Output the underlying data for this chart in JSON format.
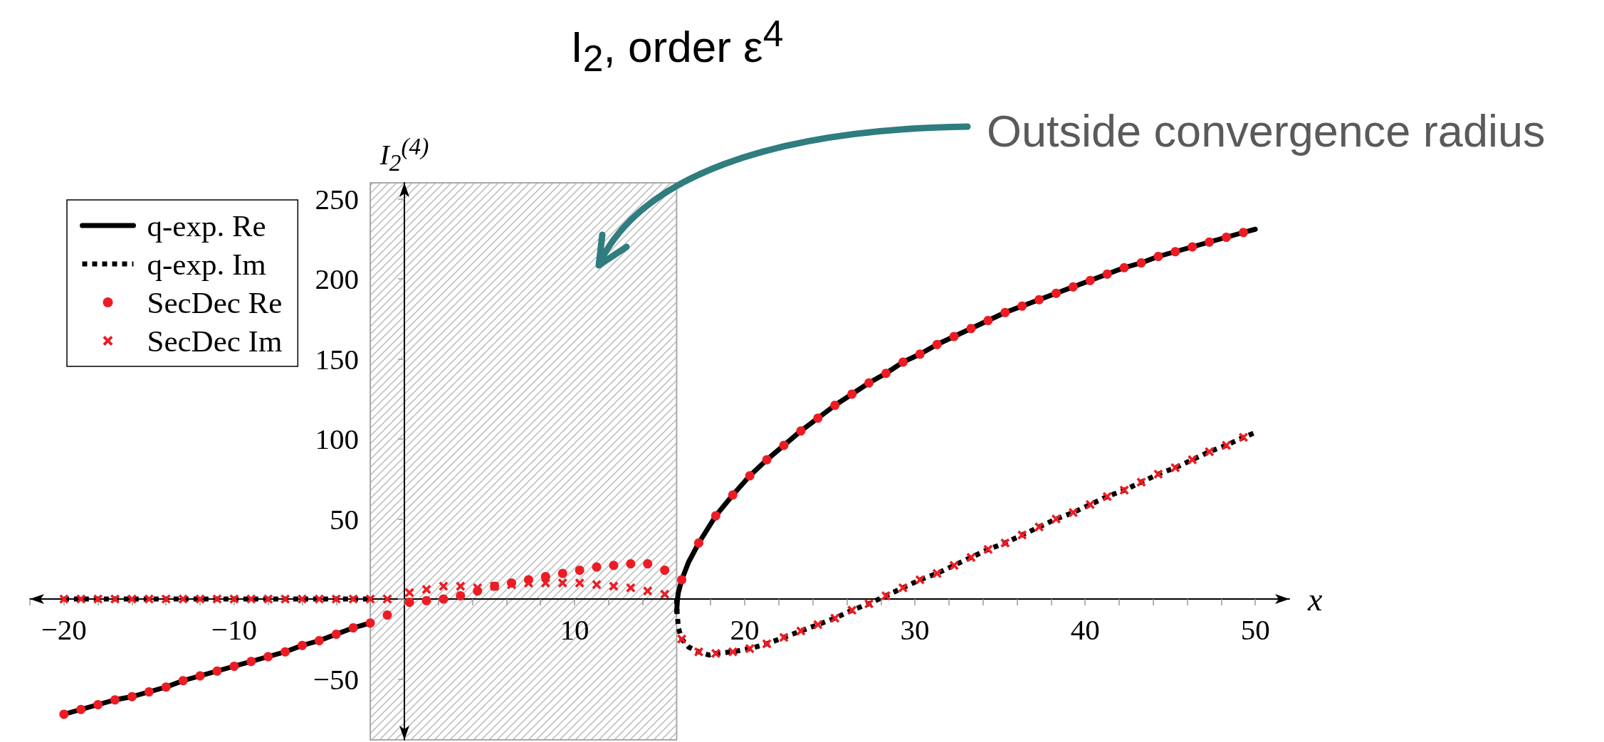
{
  "chart_data": {
    "type": "line",
    "title": "I$_{2}$, order ε$^{4}$",
    "xlabel": "x",
    "ylabel": "I$_{2}$$^{(4)}$",
    "xlim": [
      -22,
      52
    ],
    "ylim": [
      -88,
      260
    ],
    "xticks": [
      {
        "value": -22,
        "label": null
      },
      {
        "value": -20,
        "label": "−20"
      },
      {
        "value": -18,
        "label": null
      },
      {
        "value": -16,
        "label": null
      },
      {
        "value": -14,
        "label": null
      },
      {
        "value": -12,
        "label": null
      },
      {
        "value": -10,
        "label": "−10"
      },
      {
        "value": -8,
        "label": null
      },
      {
        "value": -6,
        "label": null
      },
      {
        "value": -4,
        "label": null
      },
      {
        "value": -2,
        "label": null
      },
      {
        "value": 0,
        "label": null
      },
      {
        "value": 2,
        "label": null
      },
      {
        "value": 4,
        "label": null
      },
      {
        "value": 6,
        "label": null
      },
      {
        "value": 8,
        "label": null
      },
      10,
      {
        "value": 12,
        "label": null
      },
      {
        "value": 14,
        "label": null
      },
      {
        "value": 16,
        "label": null
      },
      {
        "value": 18,
        "label": null
      },
      20,
      {
        "value": 22,
        "label": null
      },
      {
        "value": 24,
        "label": null
      },
      {
        "value": 26,
        "label": null
      },
      {
        "value": 28,
        "label": null
      },
      30,
      {
        "value": 32,
        "label": null
      },
      {
        "value": 34,
        "label": null
      },
      {
        "value": 36,
        "label": null
      },
      {
        "value": 38,
        "label": null
      },
      40,
      {
        "value": 42,
        "label": null
      },
      {
        "value": 44,
        "label": null
      },
      {
        "value": 46,
        "label": null
      },
      {
        "value": 48,
        "label": null
      },
      50
    ],
    "yticks": [
      {
        "value": -50,
        "label": "−50"
      },
      {
        "value": 0,
        "label": null
      },
      50,
      100,
      150,
      200,
      250
    ],
    "legend": "top left",
    "bands": [
      {
        "axis": "x",
        "from": -2,
        "to": 16,
        "label": "Outside convergence radius",
        "color": "#a8a8a8"
      }
    ],
    "series": [
      {
        "name": "q-exp. Re",
        "type": "line",
        "color": "#000000",
        "line_style": "solid",
        "marker": "none",
        "x": [
          -20,
          -19,
          -18,
          -17,
          -16,
          -15,
          -14,
          -13,
          -12,
          -11,
          -10,
          -9,
          -8,
          -7,
          -6,
          -5,
          -4,
          -3,
          -2,
          -1,
          16,
          16.05,
          16.1,
          16.3,
          16.7,
          17.3,
          18.3,
          19.3,
          20.3,
          21.3,
          22.3,
          23.3,
          24.3,
          25.3,
          26.3,
          27.3,
          28.3,
          29.3,
          30.3,
          31.3,
          32.3,
          33.3,
          34.3,
          35.3,
          36.3,
          37.3,
          38.3,
          39.3,
          40.3,
          41.3,
          42.3,
          43.3,
          44.3,
          45.3,
          46.3,
          47.3,
          48.3,
          49.3,
          50
        ],
        "values": [
          -72,
          -69,
          -66,
          -63,
          -61,
          -58,
          -55,
          -51,
          -48,
          -45,
          -42,
          -39,
          -36,
          -33,
          -29,
          -26,
          -22,
          -18,
          -15,
          null,
          -8,
          0,
          4,
          12,
          23,
          35,
          52,
          65,
          77,
          87,
          96,
          105,
          113,
          121,
          128,
          135,
          141,
          148,
          153,
          159,
          164,
          169,
          174,
          179,
          183,
          187,
          191,
          195,
          199,
          203,
          207,
          210,
          214,
          217,
          220,
          223,
          226,
          229,
          231
        ]
      },
      {
        "name": "q-exp. Im",
        "type": "line",
        "color": "#000000",
        "line_style": "dotted",
        "marker": "none",
        "x": [
          -20,
          -2,
          -1,
          16,
          16.03,
          16.1,
          16.3,
          16.7,
          17.3,
          17.9,
          18.3,
          19.3,
          20.3,
          21.3,
          22.3,
          23.3,
          24.3,
          25.3,
          26.3,
          27.3,
          28.3,
          29.3,
          30.3,
          31.3,
          32.3,
          33.3,
          34.3,
          35.3,
          36.3,
          37.3,
          38.3,
          39.3,
          40.3,
          41.3,
          42.3,
          43.3,
          44.3,
          45.3,
          46.3,
          47.3,
          48.3,
          49.3,
          50
        ],
        "values": [
          0,
          0,
          null,
          0,
          -8,
          -18,
          -25,
          -30,
          -33,
          -35,
          -34,
          -33,
          -31,
          -28,
          -24,
          -20,
          -16,
          -12,
          -7,
          -3,
          2,
          7,
          12,
          16,
          21,
          26,
          31,
          35,
          40,
          45,
          50,
          54,
          59,
          64,
          68,
          73,
          78,
          82,
          87,
          92,
          96,
          101,
          104
        ]
      },
      {
        "name": "SecDec Re",
        "type": "scatter",
        "color": "#ed1c24",
        "marker": "circle",
        "x": [
          -20,
          -19,
          -18,
          -17,
          -16,
          -15,
          -14,
          -13,
          -12,
          -11,
          -10,
          -9,
          -8,
          -7,
          -6,
          -5,
          -4,
          -3,
          -2,
          -1,
          0.3,
          1.3,
          2.3,
          3.3,
          4.3,
          5.3,
          6.3,
          7.3,
          8.3,
          9.3,
          10.3,
          11.3,
          12.3,
          13.3,
          14.3,
          15.3,
          16.3,
          17.3,
          18.3,
          19.3,
          20.3,
          21.3,
          22.3,
          23.3,
          24.3,
          25.3,
          26.3,
          27.3,
          28.3,
          29.3,
          30.3,
          31.3,
          32.3,
          33.3,
          34.3,
          35.3,
          36.3,
          37.3,
          38.3,
          39.3,
          40.3,
          41.3,
          42.3,
          43.3,
          44.3,
          45.3,
          46.3,
          47.3,
          48.3,
          49.3
        ],
        "values": [
          -72,
          -69,
          -66,
          -63,
          -61,
          -58,
          -55,
          -51,
          -48,
          -45,
          -42,
          -39,
          -36,
          -33,
          -29,
          -26,
          -22,
          -18,
          -15,
          -10,
          -2,
          -1,
          0,
          2,
          5,
          8,
          10,
          12,
          14,
          16,
          18,
          20,
          21,
          22,
          22,
          18,
          12,
          35,
          52,
          65,
          77,
          87,
          96,
          105,
          113,
          121,
          128,
          135,
          141,
          148,
          153,
          159,
          164,
          169,
          174,
          179,
          183,
          187,
          191,
          195,
          199,
          203,
          207,
          210,
          214,
          217,
          220,
          223,
          226,
          229
        ]
      },
      {
        "name": "SecDec Im",
        "type": "scatter",
        "color": "#ed1c24",
        "marker": "cross",
        "x": [
          -20,
          -19,
          -18,
          -17,
          -16,
          -15,
          -14,
          -13,
          -12,
          -11,
          -10,
          -9,
          -8,
          -7,
          -6,
          -5,
          -4,
          -3,
          -2,
          -1,
          0.3,
          1.3,
          2.3,
          3.3,
          4.3,
          5.3,
          6.3,
          7.3,
          8.3,
          9.3,
          10.3,
          11.3,
          12.3,
          13.3,
          14.3,
          15.3,
          16.3,
          17.3,
          18.3,
          19.3,
          20.3,
          21.3,
          22.3,
          23.3,
          24.3,
          25.3,
          26.3,
          27.3,
          28.3,
          29.3,
          30.3,
          31.3,
          32.3,
          33.3,
          34.3,
          35.3,
          36.3,
          37.3,
          38.3,
          39.3,
          40.3,
          41.3,
          42.3,
          43.3,
          44.3,
          45.3,
          46.3,
          47.3,
          48.3,
          49.3
        ],
        "values": [
          0,
          0,
          0,
          0,
          0,
          0,
          0,
          0,
          0,
          0,
          0,
          0,
          0,
          0,
          0,
          0,
          0,
          0,
          0,
          0,
          4,
          6,
          8,
          8,
          7,
          8,
          9,
          10,
          10,
          10,
          10,
          9,
          8,
          7,
          5,
          3,
          -25,
          -33,
          -34,
          -33,
          -31,
          -28,
          -24,
          -20,
          -16,
          -12,
          -7,
          -3,
          2,
          7,
          12,
          16,
          21,
          26,
          31,
          35,
          40,
          45,
          50,
          54,
          59,
          64,
          68,
          73,
          78,
          82,
          87,
          92,
          96,
          101
        ]
      }
    ]
  }
}
